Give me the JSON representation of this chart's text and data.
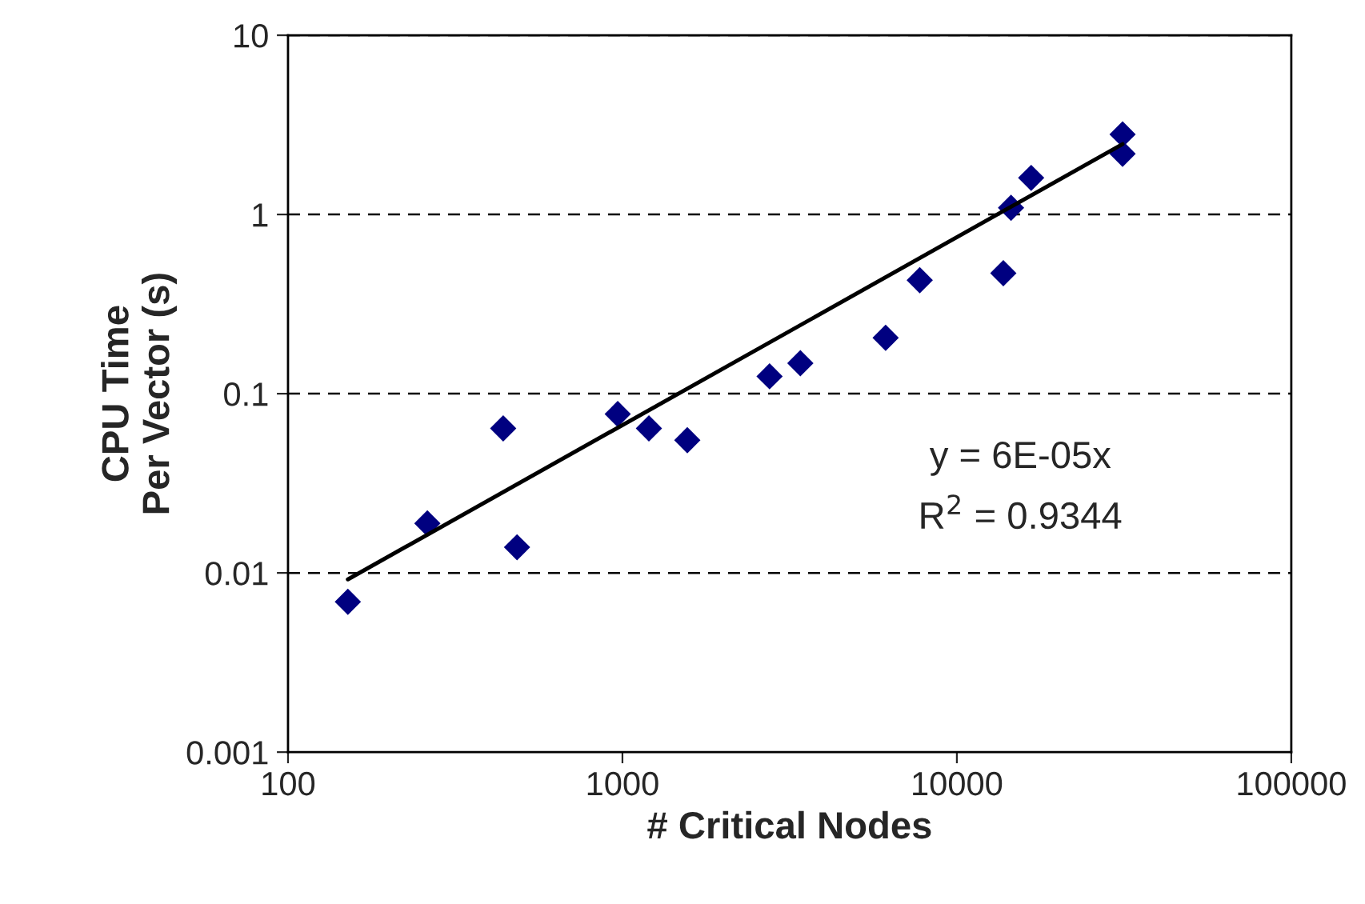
{
  "chart_data": {
    "type": "scatter",
    "xlabel": "# Critical Nodes",
    "ylabel": "CPU Time\nPer Vector (s)",
    "log": "xy",
    "xlim": [
      100,
      100000
    ],
    "ylim": [
      0.001,
      10
    ],
    "xticks": [
      100,
      1000,
      10000,
      100000
    ],
    "yticks": [
      0.001,
      0.01,
      0.1,
      1,
      10
    ],
    "grid": "y",
    "series": [
      {
        "marker": "diamond",
        "color": "#000080",
        "x": [
          151,
          261,
          440,
          484,
          968,
          1200,
          1563,
          2754,
          3404,
          6124,
          7745,
          13770,
          14520,
          16680,
          31300,
          31300
        ],
        "values": [
          0.0069,
          0.0189,
          0.064,
          0.0139,
          0.077,
          0.064,
          0.055,
          0.125,
          0.148,
          0.205,
          0.43,
          0.47,
          1.09,
          1.6,
          2.8,
          2.18
        ]
      },
      {
        "type": "line",
        "color": "#000000",
        "x": [
          151,
          31300
        ],
        "values": [
          0.0092,
          2.47
        ]
      }
    ],
    "annotations": [
      "y = 6E-05x",
      "R$^{2}$ = 0.9344"
    ]
  }
}
